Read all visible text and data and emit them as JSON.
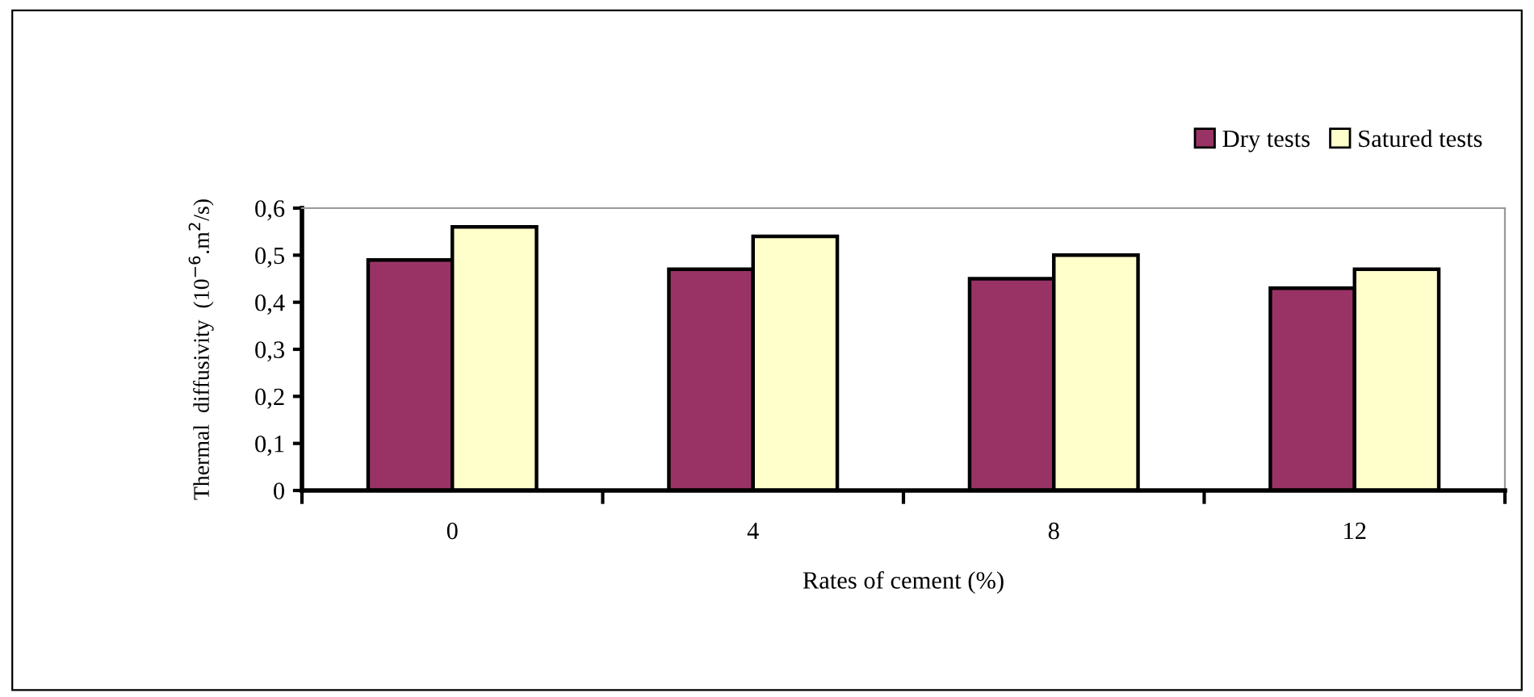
{
  "chart_data": {
    "type": "bar",
    "categories": [
      "0",
      "4",
      "8",
      "12"
    ],
    "xlabel": "Rates of cement (%)",
    "ylabel": "Thermal  diffusivity  (10$^{−6}$.m$^{2}$/s)",
    "series": [
      {
        "name": "Dry tests",
        "color": "#993366",
        "values": [
          0.49,
          0.47,
          0.45,
          0.43
        ]
      },
      {
        "name": "Satured tests",
        "color": "#ffffcc",
        "values": [
          0.56,
          0.54,
          0.5,
          0.47
        ]
      }
    ],
    "ylim": [
      0,
      0.6
    ],
    "yticks": [
      {
        "value": 0,
        "label": "0"
      },
      {
        "value": 0.1,
        "label": "0,1"
      },
      {
        "value": 0.2,
        "label": "0,2"
      },
      {
        "value": 0.3,
        "label": "0,3"
      },
      {
        "value": 0.4,
        "label": "0,4"
      },
      {
        "value": 0.5,
        "label": "0,5"
      },
      {
        "value": 0.6,
        "label": "0,6"
      }
    ],
    "grid": false,
    "legend": "top right"
  }
}
